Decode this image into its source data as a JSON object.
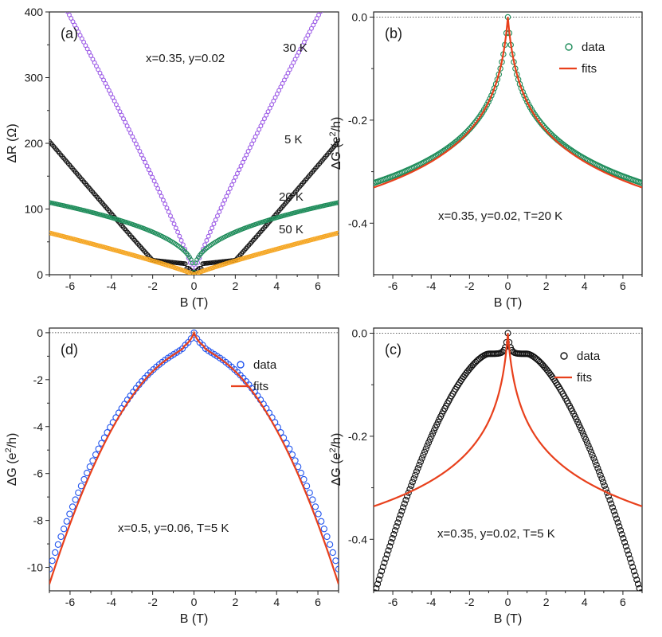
{
  "chart_data": [
    {
      "type": "scatter",
      "panel_label": "(a)",
      "annotation": "x=0.35, y=0.02",
      "xlabel": "B (T)",
      "ylabel": "ΔR (Ω)",
      "xlim": [
        -7,
        7
      ],
      "ylim": [
        0,
        400
      ],
      "xticks": [
        -6,
        -4,
        -2,
        0,
        2,
        4,
        6
      ],
      "yticks": [
        0,
        100,
        200,
        300,
        400
      ],
      "series": [
        {
          "name": "30 K",
          "label": "30 K",
          "color": "#9b59e6",
          "model": "power",
          "params": {
            "a": 78.0,
            "p": 0.9,
            "c": 2
          }
        },
        {
          "name": "5 K",
          "label": "5 K",
          "color": "#111111",
          "model": "kinked",
          "params": {
            "low": 22,
            "knee": 2.0,
            "top": 203,
            "p": 1.02
          }
        },
        {
          "name": "20 K",
          "label": "20 K",
          "color": "#1e8c5a",
          "model": "sqrt",
          "params": {
            "a": 45.0,
            "p": 0.44,
            "c": 4
          }
        },
        {
          "name": "50 K",
          "label": "50 K",
          "color": "#f5a623",
          "model": "power",
          "params": {
            "a": 11.5,
            "p": 0.88,
            "c": 0
          }
        }
      ]
    },
    {
      "type": "scatter",
      "panel_label": "(b)",
      "annotation": "x=0.35, y=0.02, T=20 K",
      "xlabel": "B (T)",
      "ylabel": "ΔG (e²/h)",
      "ylabel_main": "ΔG (e",
      "ylabel_sup": "2",
      "ylabel_tail": "/h)",
      "xlim": [
        -7,
        7
      ],
      "ylim": [
        -0.5,
        0.01
      ],
      "xticks": [
        -6,
        -4,
        -2,
        0,
        2,
        4,
        6
      ],
      "yticks": [
        0.0,
        -0.2,
        -0.4
      ],
      "ytick_labels": [
        "0.0",
        "-0.2",
        "-0.4"
      ],
      "legend": [
        "data",
        "fits"
      ],
      "series": [
        {
          "name": "data",
          "color": "#1e8c5a",
          "model": "cusp",
          "params": {
            "a": 0.115,
            "k": 0.55
          },
          "values_at": {
            "B": [
              -7,
              -4,
              -2,
              0,
              2,
              4,
              7
            ],
            "dG": [
              -0.335,
              -0.265,
              -0.19,
              0.0,
              -0.19,
              -0.265,
              -0.34
            ]
          }
        },
        {
          "name": "fits",
          "color": "#e8401c",
          "model": "cusp",
          "params": {
            "a": 0.105,
            "k": 0.62
          }
        }
      ]
    },
    {
      "type": "scatter",
      "panel_label": "(d)",
      "annotation": "x=0.5, y=0.06, T=5 K",
      "xlabel": "B (T)",
      "ylabel": "ΔG (e²/h)",
      "ylabel_main": "ΔG (e",
      "ylabel_sup": "2",
      "ylabel_tail": "/h)",
      "xlim": [
        -7,
        7
      ],
      "ylim": [
        -11,
        0.2
      ],
      "xticks": [
        -6,
        -4,
        -2,
        0,
        2,
        4,
        6
      ],
      "yticks": [
        0,
        -2,
        -4,
        -6,
        -8,
        -10
      ],
      "ytick_labels": [
        "0",
        "-2",
        "-4",
        "-6",
        "-8",
        "-10"
      ],
      "legend": [
        "data",
        "fits"
      ],
      "series": [
        {
          "name": "data",
          "color": "#2255ee",
          "model": "dome",
          "params": {
            "q": 0.175,
            "c": 0.3,
            "k": 0.3
          }
        },
        {
          "name": "fits",
          "color": "#e8401c",
          "model": "dome",
          "params": {
            "q": 0.188,
            "c": 0.3,
            "k": 0.3
          }
        }
      ]
    },
    {
      "type": "scatter",
      "panel_label": "(c)",
      "annotation": "x=0.35, y=0.02, T=5 K",
      "xlabel": "B (T)",
      "ylabel": "ΔG (e²/h)",
      "ylabel_main": "ΔG (e",
      "ylabel_sup": "2",
      "ylabel_tail": "/h)",
      "xlim": [
        -7,
        7
      ],
      "ylim": [
        -0.5,
        0.01
      ],
      "xticks": [
        -6,
        -4,
        -2,
        0,
        2,
        4,
        6
      ],
      "yticks": [
        0.0,
        -0.2,
        -0.4
      ],
      "ytick_labels": [
        "0.0",
        "-0.2",
        "-0.4"
      ],
      "legend": [
        "data",
        "fits"
      ],
      "series": [
        {
          "name": "data",
          "color": "#111111",
          "model": "shoulder",
          "params": {
            "plateau": 0.04,
            "knee": 1.0,
            "end": 0.5
          }
        },
        {
          "name": "fits",
          "color": "#e8401c",
          "model": "cusp",
          "params": {
            "a": 0.12,
            "k": 0.55
          }
        }
      ]
    }
  ]
}
